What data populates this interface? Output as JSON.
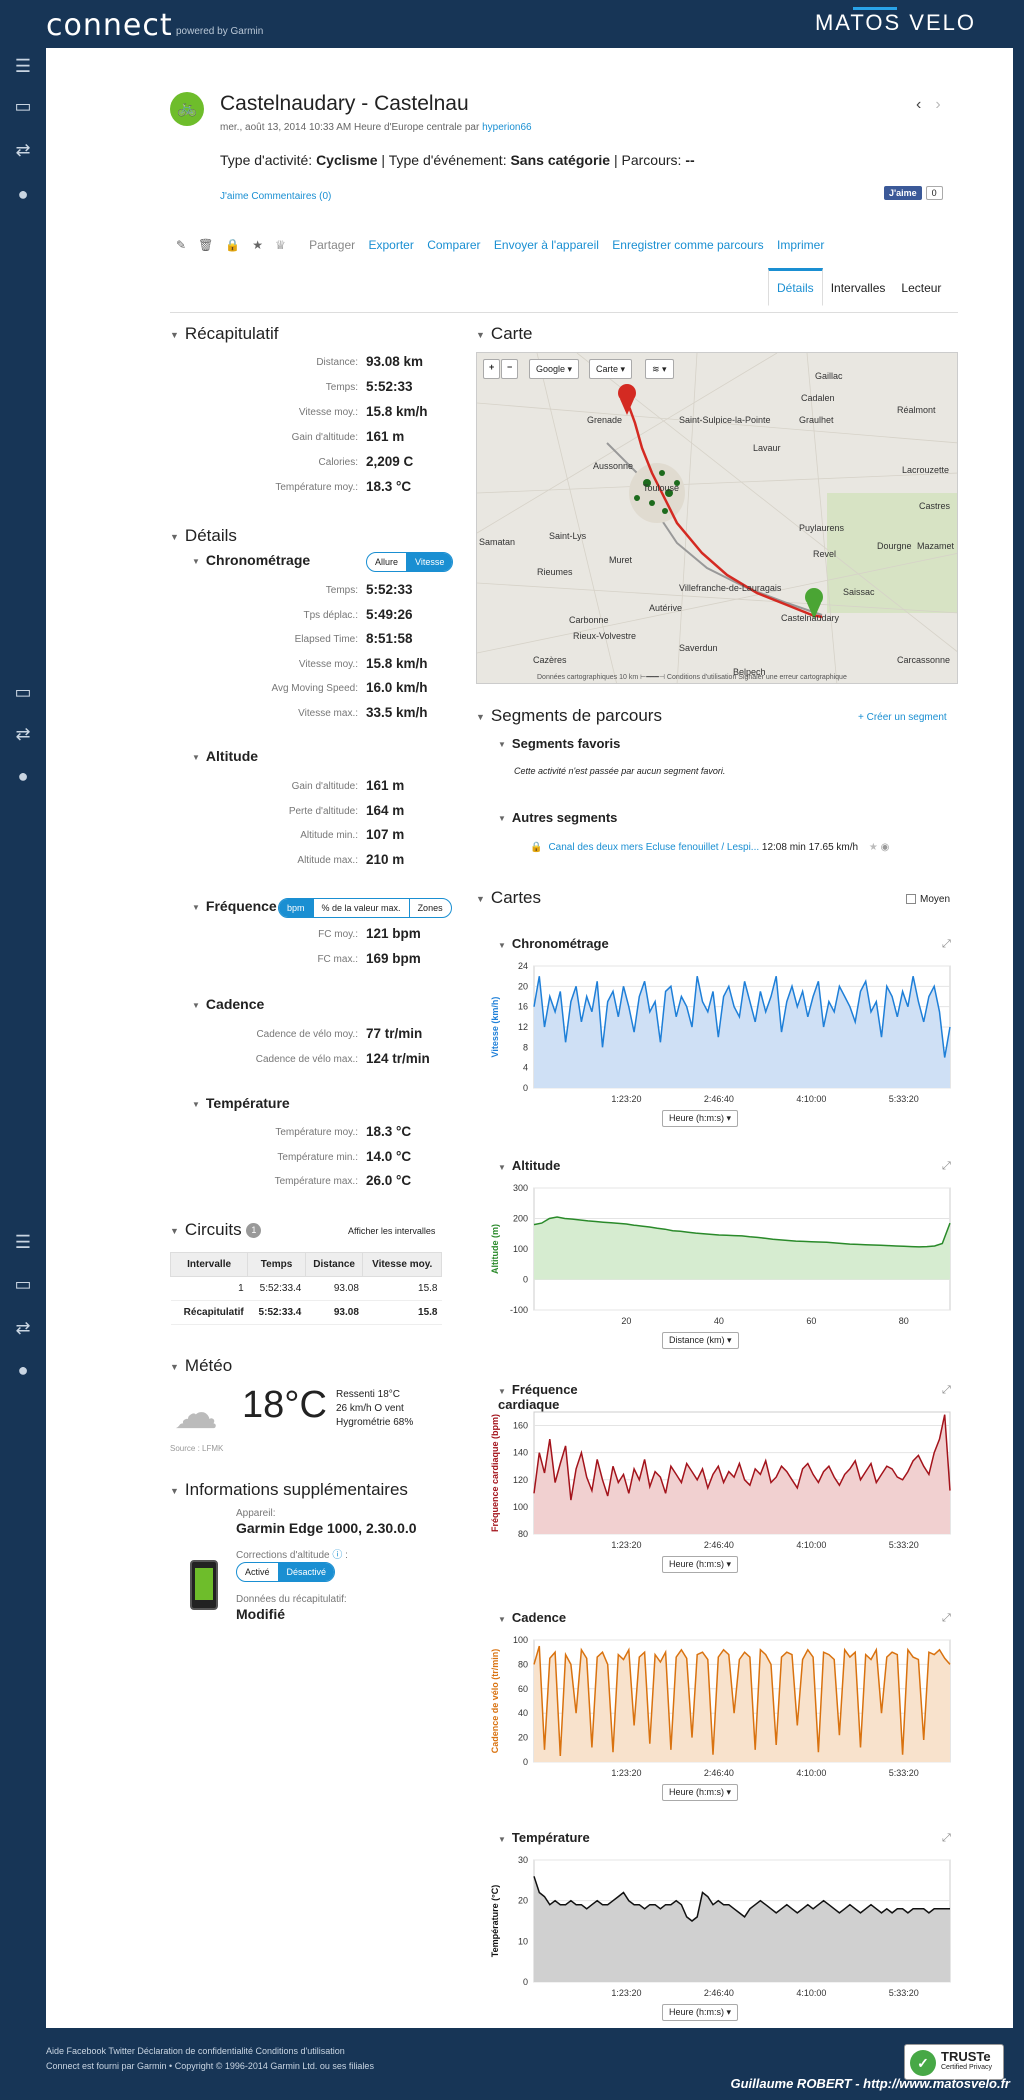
{
  "header": {
    "logo": "connect",
    "logo_sub": "powered by Garmin",
    "brand_a": "MATOS VELO",
    "brand_q": ""
  },
  "activity": {
    "title": "Castelnaudary - Castelnau",
    "meta": "mer., août 13, 2014 10:33 AM Heure d'Europe centrale par",
    "user": "hyperion66",
    "type_label": "Type d'activité:",
    "type_value": "Cyclisme",
    "event_label": "Type d'événement:",
    "event_value": "Sans catégorie",
    "course_label": "Parcours:",
    "course_value": "--",
    "likes": "J'aime Commentaires (0)",
    "fb_like": "J'aime",
    "fb_count": "0"
  },
  "toolbar": {
    "share": "Partager",
    "links": [
      "Exporter",
      "Comparer",
      "Envoyer à l'appareil",
      "Enregistrer comme parcours",
      "Imprimer"
    ]
  },
  "tabs": [
    "Détails",
    "Intervalles",
    "Lecteur"
  ],
  "summary": {
    "title": "Récapitulatif",
    "rows": [
      {
        "k": "Distance:",
        "v": "93.08 km"
      },
      {
        "k": "Temps:",
        "v": "5:52:33"
      },
      {
        "k": "Vitesse moy.:",
        "v": "15.8 km/h"
      },
      {
        "k": "Gain d'altitude:",
        "v": "161 m"
      },
      {
        "k": "Calories:",
        "v": "2,209 C"
      },
      {
        "k": "Température moy.:",
        "v": "18.3 °C"
      }
    ]
  },
  "details": {
    "title": "Détails",
    "chrono": {
      "title": "Chronométrage",
      "toggle": [
        "Allure",
        "Vitesse"
      ],
      "rows": [
        {
          "k": "Temps:",
          "v": "5:52:33"
        },
        {
          "k": "Tps déplac.:",
          "v": "5:49:26"
        },
        {
          "k": "Elapsed Time:",
          "v": "8:51:58"
        },
        {
          "k": "Vitesse moy.:",
          "v": "15.8 km/h"
        },
        {
          "k": "Avg Moving Speed:",
          "v": "16.0 km/h"
        },
        {
          "k": "Vitesse max.:",
          "v": "33.5 km/h"
        }
      ]
    },
    "altitude": {
      "title": "Altitude",
      "rows": [
        {
          "k": "Gain d'altitude:",
          "v": "161 m"
        },
        {
          "k": "Perte d'altitude:",
          "v": "164 m"
        },
        {
          "k": "Altitude min.:",
          "v": "107 m"
        },
        {
          "k": "Altitude max.:",
          "v": "210 m"
        }
      ]
    },
    "hr": {
      "title": "Fréquence",
      "toggle": [
        "bpm",
        "% de la valeur max.",
        "Zones"
      ],
      "rows": [
        {
          "k": "FC moy.:",
          "v": "121 bpm"
        },
        {
          "k": "FC max.:",
          "v": "169 bpm"
        }
      ]
    },
    "cadence": {
      "title": "Cadence",
      "rows": [
        {
          "k": "Cadence de vélo moy.:",
          "v": "77 tr/min"
        },
        {
          "k": "Cadence de vélo max.:",
          "v": "124 tr/min"
        }
      ]
    },
    "temp": {
      "title": "Température",
      "rows": [
        {
          "k": "Température moy.:",
          "v": "18.3 °C"
        },
        {
          "k": "Température min.:",
          "v": "14.0 °C"
        },
        {
          "k": "Température max.:",
          "v": "26.0 °C"
        }
      ]
    }
  },
  "circuits": {
    "title": "Circuits",
    "badge": "1",
    "show_link": "Afficher les intervalles",
    "headers": [
      "Intervalle",
      "Temps",
      "Distance",
      "Vitesse moy."
    ],
    "rows": [
      [
        "1",
        "5:52:33.4",
        "93.08",
        "15.8"
      ],
      [
        "Récapitulatif",
        "5:52:33.4",
        "93.08",
        "15.8"
      ]
    ]
  },
  "weather": {
    "title": "Météo",
    "temp": "18°C",
    "feels": "Ressenti 18°C",
    "wind": "26 km/h O vent",
    "humidity": "Hygrométrie 68%",
    "source": "Source : LFMK"
  },
  "info": {
    "title": "Informations supplémentaires",
    "device_label": "Appareil:",
    "device": "Garmin Edge 1000, 2.30.0.0",
    "corr_label": "Corrections d'altitude",
    "corr_toggle": [
      "Activé",
      "Désactivé"
    ],
    "data_label": "Données du récapitulatif:",
    "data_value": "Modifié"
  },
  "map": {
    "title": "Carte",
    "controls": [
      "+",
      "−",
      "Google ▾",
      "Carte ▾",
      "≋ ▾"
    ],
    "footer": "Données cartographiques   10 km ⊢━━━⊣   Conditions d'utilisation   Signaler une erreur cartographique",
    "places": [
      "Gaillac",
      "Cadalen",
      "Grenade",
      "Saint-Sulpice-la-Pointe",
      "Graulhet",
      "Réalmont",
      "Aussonne",
      "Lavaur",
      "Toulouse",
      "Lacrouzette",
      "Castres",
      "Puylaurens",
      "Samatan",
      "Saint-Lys",
      "Revel",
      "Dourgne",
      "Mazamet",
      "Muret",
      "Rieumes",
      "Villefranche-de-Lauragais",
      "Saissac",
      "Castelnaudary",
      "Carbonne",
      "Autérive",
      "Rieux-Volvestre",
      "Saverdun",
      "Cazères",
      "Carcassonne",
      "Belpech"
    ]
  },
  "segments": {
    "title": "Segments de parcours",
    "create": "+ Créer un segment",
    "fav_title": "Segments favoris",
    "fav_empty": "Cette activité n'est passée par aucun segment favori.",
    "other_title": "Autres segments",
    "seg_name": "Canal des deux mers Ecluse fenouillet / Lespi...",
    "seg_time": "12:08 min",
    "seg_speed": "17.65 km/h"
  },
  "charts_section": {
    "title": "Cartes",
    "moyen": "Moyen"
  },
  "chart_data": [
    {
      "type": "line",
      "title": "Chronométrage",
      "ylabel": "Vitesse (km/h)",
      "xlabel": "Heure (h:m:s)",
      "xticks": [
        "1:23:20",
        "2:46:40",
        "4:10:00",
        "5:33:20"
      ],
      "yticks": [
        0,
        4,
        8,
        12,
        16,
        20,
        24
      ],
      "ylim": [
        0,
        24
      ],
      "color": "#1e7fd8",
      "fill": "#cfe0f5",
      "values": [
        16,
        22,
        12,
        18,
        15,
        19,
        9,
        17,
        20,
        13,
        18,
        15,
        21,
        8,
        17,
        19,
        14,
        20,
        16,
        11,
        18,
        21,
        15,
        17,
        9,
        19,
        20,
        14,
        18,
        16,
        12,
        22,
        17,
        15,
        19,
        10,
        18,
        20,
        16,
        14,
        21,
        17,
        13,
        19,
        15,
        18,
        22,
        11,
        17,
        20,
        16,
        19,
        14,
        18,
        21,
        12,
        17,
        15,
        20,
        18,
        16,
        13,
        19,
        21,
        15,
        17,
        10,
        20,
        18,
        14,
        19,
        16,
        22,
        17,
        13,
        18,
        20,
        15,
        6,
        12
      ]
    },
    {
      "type": "area",
      "title": "Altitude",
      "ylabel": "Altitude (m)",
      "xlabel": "Distance (km)",
      "xticks": [
        "20",
        "40",
        "60",
        "80"
      ],
      "yticks": [
        -100,
        0,
        100,
        200,
        300
      ],
      "ylim": [
        -100,
        300
      ],
      "color": "#2a8a2a",
      "fill": "#d6ecd0",
      "values": [
        180,
        185,
        200,
        205,
        200,
        198,
        195,
        192,
        190,
        188,
        186,
        184,
        182,
        178,
        175,
        172,
        168,
        165,
        160,
        158,
        155,
        152,
        150,
        148,
        146,
        145,
        144,
        143,
        140,
        138,
        135,
        132,
        130,
        128,
        126,
        125,
        124,
        123,
        122,
        120,
        118,
        116,
        115,
        114,
        113,
        112,
        111,
        110,
        109,
        108,
        107,
        108,
        110,
        118,
        185
      ]
    },
    {
      "type": "line",
      "title": "Fréquence cardiaque",
      "ylabel": "Fréquence cardiaque (bpm)",
      "xlabel": "Heure (h:m:s)",
      "xticks": [
        "1:23:20",
        "2:46:40",
        "4:10:00",
        "5:33:20"
      ],
      "yticks": [
        80,
        100,
        120,
        140,
        160
      ],
      "ylim": [
        80,
        170
      ],
      "color": "#a3131b",
      "fill": "#f1d0d0",
      "values": [
        110,
        140,
        125,
        150,
        118,
        132,
        145,
        105,
        128,
        140,
        122,
        112,
        135,
        120,
        108,
        130,
        118,
        124,
        110,
        128,
        120,
        135,
        115,
        126,
        122,
        110,
        130,
        124,
        118,
        132,
        126,
        120,
        128,
        114,
        124,
        130,
        118,
        126,
        122,
        132,
        120,
        116,
        128,
        124,
        134,
        118,
        122,
        130,
        126,
        120,
        114,
        128,
        132,
        124,
        118,
        126,
        130,
        122,
        116,
        124,
        128,
        134,
        120,
        126,
        132,
        118,
        124,
        130,
        128,
        122,
        120,
        126,
        134,
        138,
        130,
        124,
        140,
        150,
        168,
        112
      ]
    },
    {
      "type": "line",
      "title": "Cadence",
      "ylabel": "Cadence de vélo (tr/min)",
      "xlabel": "Heure (h:m:s)",
      "xticks": [
        "1:23:20",
        "2:46:40",
        "4:10:00",
        "5:33:20"
      ],
      "yticks": [
        0,
        20,
        40,
        60,
        80,
        100
      ],
      "ylim": [
        0,
        100
      ],
      "color": "#d9720f",
      "fill": "#f8e2cc",
      "values": [
        80,
        95,
        10,
        85,
        90,
        5,
        88,
        80,
        40,
        92,
        85,
        12,
        86,
        90,
        80,
        8,
        88,
        84,
        92,
        30,
        86,
        90,
        15,
        88,
        82,
        90,
        10,
        86,
        92,
        85,
        20,
        88,
        90,
        84,
        6,
        86,
        92,
        88,
        40,
        84,
        90,
        86,
        10,
        92,
        88,
        80,
        14,
        86,
        90,
        88,
        30,
        84,
        92,
        86,
        8,
        90,
        88,
        84,
        22,
        92,
        86,
        90,
        12,
        88,
        84,
        92,
        40,
        86,
        90,
        88,
        6,
        92,
        86,
        84,
        18,
        90,
        88,
        92,
        85,
        80
      ]
    },
    {
      "type": "line",
      "title": "Température",
      "ylabel": "Température (°C)",
      "xlabel": "Heure (h:m:s)",
      "xticks": [
        "1:23:20",
        "2:46:40",
        "4:10:00",
        "5:33:20"
      ],
      "yticks": [
        0,
        10,
        20,
        30
      ],
      "ylim": [
        0,
        30
      ],
      "color": "#111111",
      "fill": "#d0d0d0",
      "values": [
        26,
        22,
        21,
        19,
        20,
        19,
        19,
        20,
        19,
        19,
        18,
        19,
        20,
        19,
        19,
        20,
        21,
        22,
        20,
        19,
        19,
        18,
        19,
        19,
        18,
        19,
        19,
        20,
        19,
        16,
        15,
        16,
        22,
        21,
        19,
        20,
        19,
        19,
        18,
        17,
        16,
        18,
        19,
        20,
        19,
        18,
        17,
        18,
        19,
        18,
        17,
        18,
        19,
        18,
        19,
        20,
        19,
        18,
        17,
        18,
        19,
        18,
        17,
        18,
        19,
        18,
        17,
        18,
        17,
        18,
        18,
        17,
        18,
        18,
        18,
        17,
        18,
        18,
        18,
        18
      ]
    }
  ],
  "footer": {
    "line1": "Aide Facebook Twitter Déclaration de confidentialité Conditions d'utilisation",
    "line2": "Connect est fourni par Garmin • Copyright © 1996-2014 Garmin Ltd. ou ses filiales",
    "truste": "TRUSTe",
    "truste_sub": "Certified Privacy",
    "credit": "Guillaume ROBERT - http://www.matosvelo.fr"
  },
  "icons": [
    "menu-icon",
    "inbox-icon",
    "connections-icon",
    "user-icon",
    "bike-icon",
    "pencil-icon",
    "trash-icon",
    "lock-icon",
    "star-icon",
    "trophy-icon",
    "cloud-icon",
    "expand-icon",
    "eye-icon",
    "help-icon"
  ]
}
